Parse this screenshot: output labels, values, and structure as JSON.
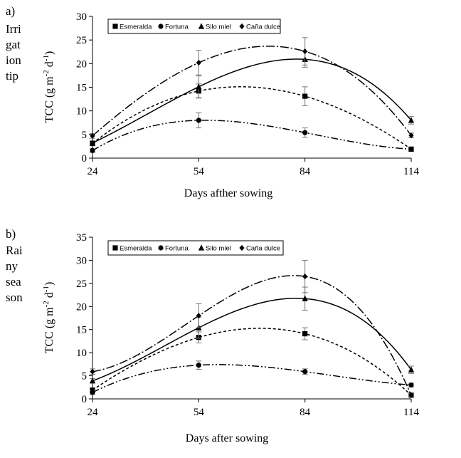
{
  "chart_data": [
    {
      "type": "line",
      "panel_label": "a)",
      "side_label": [
        "Irri",
        "gat",
        "ion",
        "tip"
      ],
      "xlabel": "Days afther sowing",
      "ylabel": "TCC (g m-2 d-1)",
      "ylabel_parts": {
        "base": "TCC (g m",
        "sup1": "-2",
        "mid": " d",
        "sup2": "-1",
        "end": ")"
      },
      "x": [
        24,
        54,
        84,
        114
      ],
      "xticks": [
        24,
        54,
        84,
        114
      ],
      "yticks": [
        0,
        5,
        10,
        15,
        20,
        25,
        30
      ],
      "xlim": [
        24,
        114
      ],
      "ylim": [
        0,
        30
      ],
      "legend": "top-center",
      "series": [
        {
          "name": "Esmeralda",
          "marker": "square",
          "dash": "4,3",
          "values": [
            3.1,
            14.2,
            13.1,
            1.9
          ],
          "errors": [
            0.5,
            1.5,
            2.0,
            0.4
          ]
        },
        {
          "name": "Fortuna",
          "marker": "circle",
          "dash": "10,3,2,3,2,3",
          "values": [
            1.6,
            8.0,
            5.4,
            1.9
          ],
          "errors": [
            0.4,
            1.6,
            1.0,
            0.3
          ]
        },
        {
          "name": "Silo miel",
          "marker": "triangle",
          "dash": "",
          "values": [
            3.2,
            15.1,
            20.9,
            8.0
          ],
          "errors": [
            0.5,
            2.3,
            1.7,
            0.8
          ]
        },
        {
          "name": "Caña dulce",
          "marker": "diamond",
          "dash": "12,3,2,3",
          "values": [
            4.7,
            20.2,
            22.6,
            4.8
          ],
          "errors": [
            0.5,
            2.6,
            2.9,
            0.5
          ]
        }
      ]
    },
    {
      "type": "line",
      "panel_label": "b)",
      "side_label": [
        "Rai",
        "ny",
        "sea",
        "son"
      ],
      "xlabel": "Days after sowing",
      "ylabel": "TCC (g m-2 d-1)",
      "ylabel_parts": {
        "base": "TCC (g m",
        "sup1": "-2",
        "mid": " d",
        "sup2": "-1",
        "end": ")"
      },
      "x": [
        24,
        54,
        84,
        114
      ],
      "xticks": [
        24,
        54,
        84,
        114
      ],
      "yticks": [
        0,
        5,
        10,
        15,
        20,
        25,
        30,
        35
      ],
      "xlim": [
        24,
        114
      ],
      "ylim": [
        0,
        35
      ],
      "legend": "top-center",
      "series": [
        {
          "name": "Esmeralda",
          "marker": "square",
          "dash": "4,3",
          "values": [
            1.9,
            13.3,
            14.1,
            0.8
          ],
          "errors": [
            0.5,
            1.2,
            1.3,
            0.3
          ]
        },
        {
          "name": "Fortuna",
          "marker": "circle",
          "dash": "10,3,2,3,2,3",
          "values": [
            1.4,
            7.3,
            5.9,
            3.0
          ],
          "errors": [
            0.4,
            0.9,
            0.6,
            0.4
          ]
        },
        {
          "name": "Silo miel",
          "marker": "triangle",
          "dash": "",
          "values": [
            3.9,
            15.4,
            21.7,
            6.3
          ],
          "errors": [
            0.5,
            2.3,
            2.5,
            0.8
          ]
        },
        {
          "name": "Caña dulce",
          "marker": "diamond",
          "dash": "12,3,2,3",
          "values": [
            5.9,
            18.0,
            26.5,
            0.8
          ],
          "errors": [
            0.6,
            2.6,
            3.5,
            0.3
          ]
        }
      ]
    }
  ]
}
